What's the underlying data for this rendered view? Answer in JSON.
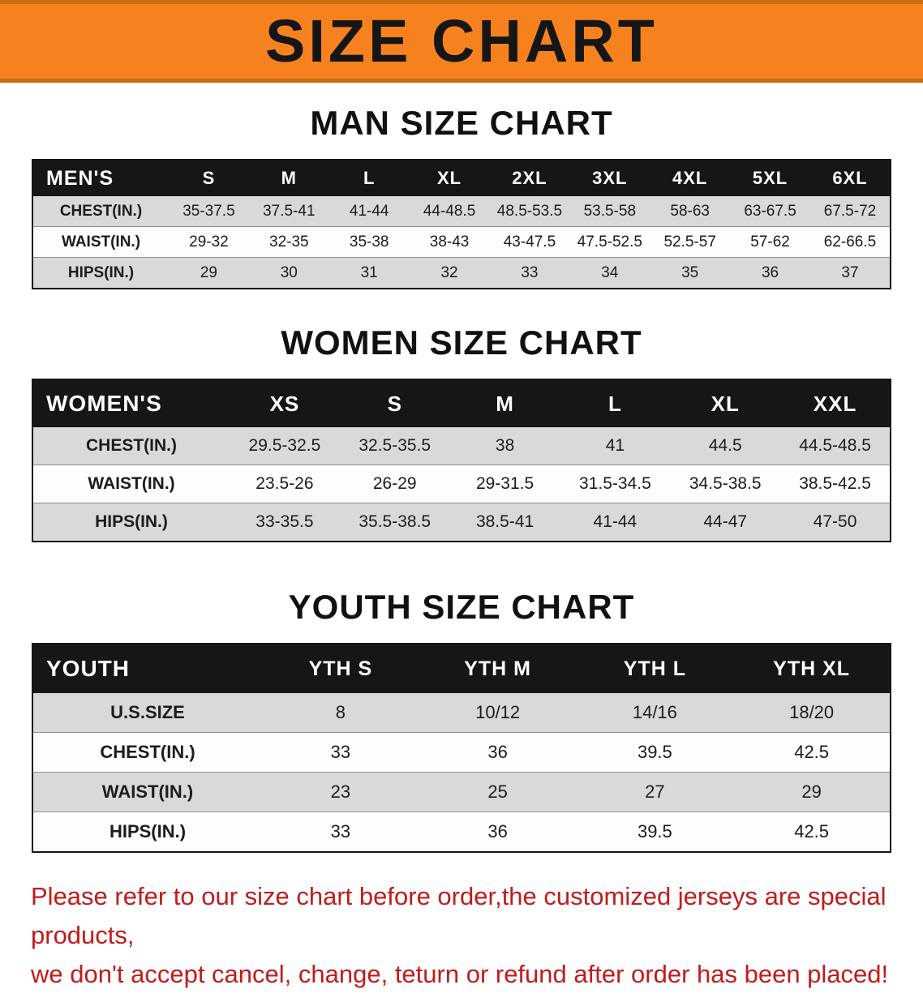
{
  "banner": {
    "title": "SIZE CHART",
    "bg_color": "#f6821f",
    "edge_color": "#cd6c10",
    "text_color": "#161616"
  },
  "sections": [
    {
      "id": "men",
      "heading": "MAN SIZE CHART",
      "corner_label": "MEN'S",
      "sizes": [
        "S",
        "M",
        "L",
        "XL",
        "2XL",
        "3XL",
        "4XL",
        "5XL",
        "6XL"
      ],
      "rows": [
        {
          "label": "CHEST(IN.)",
          "values": [
            "35-37.5",
            "37.5-41",
            "41-44",
            "44-48.5",
            "48.5-53.5",
            "53.5-58",
            "58-63",
            "63-67.5",
            "67.5-72"
          ]
        },
        {
          "label": "WAIST(IN.)",
          "values": [
            "29-32",
            "32-35",
            "35-38",
            "38-43",
            "43-47.5",
            "47.5-52.5",
            "52.5-57",
            "57-62",
            "62-66.5"
          ]
        },
        {
          "label": "HIPS(IN.)",
          "values": [
            "29",
            "30",
            "31",
            "32",
            "33",
            "34",
            "35",
            "36",
            "37"
          ]
        }
      ]
    },
    {
      "id": "women",
      "heading": "WOMEN SIZE CHART",
      "corner_label": "WOMEN'S",
      "sizes": [
        "XS",
        "S",
        "M",
        "L",
        "XL",
        "XXL"
      ],
      "rows": [
        {
          "label": "CHEST(IN.)",
          "values": [
            "29.5-32.5",
            "32.5-35.5",
            "38",
            "41",
            "44.5",
            "44.5-48.5"
          ]
        },
        {
          "label": "WAIST(IN.)",
          "values": [
            "23.5-26",
            "26-29",
            "29-31.5",
            "31.5-34.5",
            "34.5-38.5",
            "38.5-42.5"
          ]
        },
        {
          "label": "HIPS(IN.)",
          "values": [
            "33-35.5",
            "35.5-38.5",
            "38.5-41",
            "41-44",
            "44-47",
            "47-50"
          ]
        }
      ]
    },
    {
      "id": "youth",
      "heading": "YOUTH SIZE CHART",
      "corner_label": "YOUTH",
      "sizes": [
        "YTH S",
        "YTH M",
        "YTH L",
        "YTH XL"
      ],
      "rows": [
        {
          "label": "U.S.SIZE",
          "values": [
            "8",
            "10/12",
            "14/16",
            "18/20"
          ]
        },
        {
          "label": "CHEST(IN.)",
          "values": [
            "33",
            "36",
            "39.5",
            "42.5"
          ]
        },
        {
          "label": "WAIST(IN.)",
          "values": [
            "23",
            "25",
            "27",
            "29"
          ]
        },
        {
          "label": "HIPS(IN.)",
          "values": [
            "33",
            "36",
            "39.5",
            "42.5"
          ]
        }
      ]
    }
  ],
  "footer": {
    "line1": "Please refer to our size chart before order,the customized jerseys are special products,",
    "line2": "we don't accept cancel, change, teturn or refund after order has been placed!",
    "text_color": "#c11b1b"
  }
}
